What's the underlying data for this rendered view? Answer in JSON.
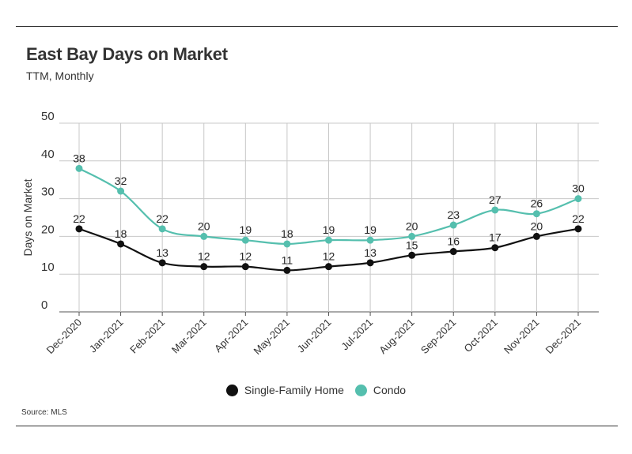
{
  "header": {
    "title": "East Bay Days on Market",
    "subtitle": "TTM, Monthly"
  },
  "footer": {
    "source": "Source:  MLS"
  },
  "colors": {
    "sfh": "#111111",
    "condo": "#55bfae",
    "grid": "#c8c8c8",
    "axis": "#555555"
  },
  "chart_data": {
    "type": "line",
    "title": "East Bay Days on Market",
    "subtitle": "TTM, Monthly",
    "xlabel": "",
    "ylabel": "Days on Market",
    "ylim": [
      0,
      50
    ],
    "yticks": [
      0,
      10,
      20,
      30,
      40,
      50
    ],
    "grid": true,
    "legend": "bottom-center",
    "categories": [
      "Dec-2020",
      "Jan-2021",
      "Feb-2021",
      "Mar-2021",
      "Apr-2021",
      "May-2021",
      "Jun-2021",
      "Jul-2021",
      "Aug-2021",
      "Sep-2021",
      "Oct-2021",
      "Nov-2021",
      "Dec-2021"
    ],
    "series": [
      {
        "name": "Single-Family Home",
        "values": [
          22,
          18,
          13,
          12,
          12,
          11,
          12,
          13,
          15,
          16,
          17,
          20,
          22
        ]
      },
      {
        "name": "Condo",
        "values": [
          38,
          32,
          22,
          20,
          19,
          18,
          19,
          19,
          20,
          23,
          27,
          26,
          30
        ]
      }
    ]
  }
}
